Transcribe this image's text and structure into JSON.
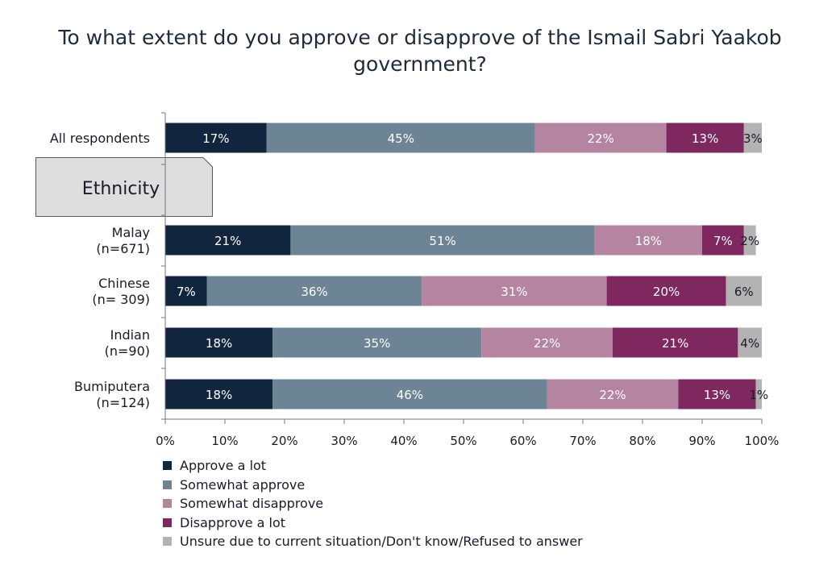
{
  "chart_data": {
    "type": "bar",
    "orientation": "horizontal",
    "stacked": true,
    "title": "To what extent do you approve or disapprove of the Ismail Sabri Yaakob government?",
    "title_lines": [
      "To what extent do you approve or disapprove of the Ismail Sabri Yaakob",
      "government?"
    ],
    "section_label": "Ethnicity",
    "categories": [
      [
        "All respondents"
      ],
      [
        "Malay",
        "(n=671)"
      ],
      [
        "Chinese",
        "(n= 309)"
      ],
      [
        "Indian",
        "(n=90)"
      ],
      [
        "Bumiputera",
        "(n=124)"
      ]
    ],
    "series": [
      {
        "name": "Approve a lot",
        "color": "#12253f",
        "label_color": "#ffffff",
        "values": [
          17,
          21,
          7,
          18,
          18
        ]
      },
      {
        "name": "Somewhat approve",
        "color": "#6c8494",
        "label_color": "#ffffff",
        "values": [
          45,
          51,
          36,
          35,
          46
        ]
      },
      {
        "name": "Somewhat disapprove",
        "color": "#b584a0",
        "label_color": "#ffffff",
        "values": [
          22,
          18,
          31,
          22,
          22
        ]
      },
      {
        "name": "Disapprove a lot",
        "color": "#7e285f",
        "label_color": "#ffffff",
        "values": [
          13,
          7,
          20,
          21,
          13
        ]
      },
      {
        "name": "Unsure due to current situation/Don't know/Refused to answer",
        "color": "#b3b3b3",
        "label_color": "#1a1a2a",
        "values": [
          3,
          2,
          6,
          4,
          1
        ]
      }
    ],
    "value_labels": [
      [
        "17%",
        "45%",
        "22%",
        "13%",
        "3%"
      ],
      [
        "21%",
        "51%",
        "18%",
        "7%",
        "2%"
      ],
      [
        "7%",
        "36%",
        "31%",
        "20%",
        "6%"
      ],
      [
        "18%",
        "35%",
        "22%",
        "21%",
        "4%"
      ],
      [
        "18%",
        "46%",
        "22%",
        "13%",
        "1%"
      ]
    ],
    "xlim": [
      0,
      100
    ],
    "xticks": [
      "0%",
      "10%",
      "20%",
      "30%",
      "40%",
      "50%",
      "60%",
      "70%",
      "80%",
      "90%",
      "100%"
    ],
    "grid": false,
    "legend_position": "bottom-left"
  }
}
